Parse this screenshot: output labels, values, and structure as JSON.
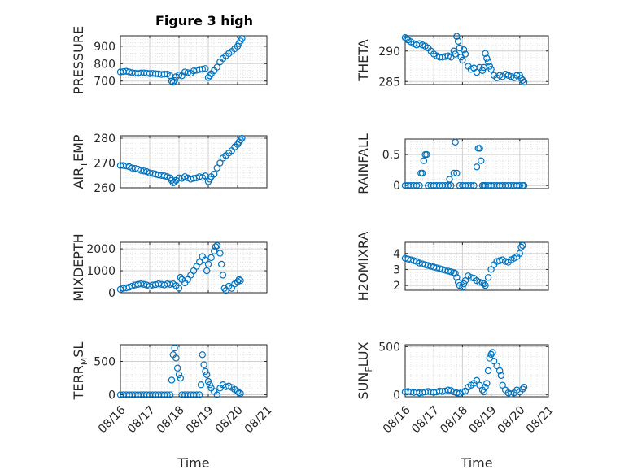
{
  "figure_title": "Figure 3 high",
  "chart_data": [
    {
      "type": "scatter",
      "id": "pressure",
      "ylabel": "PRESSURE",
      "xlabel": "",
      "ylim": [
        680,
        960
      ],
      "yticks": [
        700,
        800,
        900
      ],
      "xlim": [
        "2022-08-16",
        "2022-08-21"
      ],
      "xticks": [
        "08/16",
        "08/17",
        "08/18",
        "08/19",
        "08/20",
        "08/21"
      ],
      "grid": true,
      "minor_grid": true,
      "color": "#0072BD",
      "x": [
        0.0,
        0.1,
        0.2,
        0.3,
        0.4,
        0.5,
        0.6,
        0.7,
        0.8,
        0.9,
        1.0,
        1.1,
        1.2,
        1.3,
        1.4,
        1.5,
        1.6,
        1.7,
        1.75,
        1.8,
        1.85,
        1.9,
        2.0,
        2.1,
        2.2,
        2.3,
        2.4,
        2.5,
        2.6,
        2.7,
        2.8,
        2.9,
        3.0,
        3.05,
        3.1,
        3.2,
        3.3,
        3.4,
        3.5,
        3.6,
        3.7,
        3.8,
        3.9,
        4.0,
        4.05,
        4.1,
        4.15
      ],
      "y": [
        752,
        754,
        756,
        752,
        748,
        745,
        744,
        746,
        747,
        745,
        743,
        744,
        742,
        741,
        738,
        740,
        740,
        730,
        700,
        693,
        703,
        725,
        735,
        730,
        752,
        748,
        745,
        758,
        762,
        766,
        768,
        772,
        720,
        730,
        742,
        760,
        780,
        810,
        830,
        845,
        858,
        870,
        885,
        900,
        915,
        930,
        945
      ]
    },
    {
      "type": "scatter",
      "id": "theta",
      "ylabel": "THETA",
      "xlabel": "",
      "ylim": [
        284.5,
        292.5
      ],
      "yticks": [
        285,
        290
      ],
      "xlim": [
        "2022-08-16",
        "2022-08-21"
      ],
      "xticks": [
        "08/16",
        "08/17",
        "08/18",
        "08/19",
        "08/20",
        "08/21"
      ],
      "grid": true,
      "minor_grid": true,
      "color": "#0072BD",
      "x": [
        0.0,
        0.05,
        0.1,
        0.2,
        0.3,
        0.4,
        0.5,
        0.6,
        0.7,
        0.8,
        0.9,
        1.0,
        1.1,
        1.2,
        1.3,
        1.4,
        1.5,
        1.6,
        1.7,
        1.75,
        1.8,
        1.85,
        1.9,
        1.95,
        2.0,
        2.05,
        2.1,
        2.2,
        2.3,
        2.4,
        2.5,
        2.6,
        2.7,
        2.75,
        2.8,
        2.85,
        2.9,
        2.95,
        3.0,
        3.1,
        3.2,
        3.3,
        3.4,
        3.5,
        3.6,
        3.7,
        3.8,
        3.9,
        4.0,
        4.05,
        4.1,
        4.15
      ],
      "y": [
        292.2,
        292.0,
        291.8,
        291.5,
        291.2,
        291.0,
        291.2,
        291.0,
        290.8,
        290.5,
        290.0,
        289.5,
        289.2,
        289.0,
        289.0,
        289.1,
        289.2,
        289.0,
        290.0,
        289.5,
        292.4,
        291.6,
        290.5,
        289.0,
        288.5,
        290.2,
        289.5,
        287.5,
        287.0,
        287.2,
        286.5,
        287.3,
        286.8,
        287.3,
        289.6,
        288.8,
        288.2,
        287.5,
        287.0,
        286.0,
        285.6,
        286.0,
        285.8,
        286.2,
        286.0,
        285.8,
        285.6,
        286.0,
        286.0,
        285.5,
        285.2,
        284.9
      ]
    },
    {
      "type": "scatter",
      "id": "air_temp",
      "ylabel": "AIR_TEMP",
      "ylabel_main": "AIR",
      "ylabel_sub": "T",
      "ylabel_tail": "EMP",
      "xlabel": "",
      "ylim": [
        260,
        281
      ],
      "yticks": [
        260,
        270,
        280
      ],
      "xlim": [
        "2022-08-16",
        "2022-08-21"
      ],
      "xticks": [
        "08/16",
        "08/17",
        "08/18",
        "08/19",
        "08/20",
        "08/21"
      ],
      "grid": true,
      "minor_grid": true,
      "color": "#0072BD",
      "x": [
        0.0,
        0.1,
        0.2,
        0.3,
        0.4,
        0.5,
        0.6,
        0.7,
        0.8,
        0.9,
        1.0,
        1.1,
        1.2,
        1.3,
        1.4,
        1.5,
        1.6,
        1.7,
        1.75,
        1.8,
        1.85,
        1.9,
        2.0,
        2.1,
        2.2,
        2.3,
        2.4,
        2.5,
        2.6,
        2.7,
        2.8,
        2.9,
        3.0,
        3.05,
        3.1,
        3.2,
        3.3,
        3.4,
        3.5,
        3.6,
        3.7,
        3.8,
        3.9,
        4.0,
        4.05,
        4.1,
        4.15
      ],
      "y": [
        269,
        269,
        268.8,
        268.5,
        268,
        267.8,
        267.5,
        267,
        266.8,
        266.5,
        266,
        265.8,
        265.5,
        265.2,
        265,
        264.8,
        264.5,
        264,
        263,
        262,
        262.3,
        263,
        264,
        263.8,
        264.5,
        264,
        263.5,
        263.8,
        264,
        264.5,
        264.2,
        264.8,
        262.5,
        263.5,
        264.5,
        265.5,
        268,
        270,
        272,
        273,
        274,
        275,
        276.5,
        277.5,
        278.5,
        279.3,
        280
      ]
    },
    {
      "type": "scatter",
      "id": "rainfall",
      "ylabel": "RAINFALL",
      "xlabel": "",
      "ylim": [
        -0.05,
        0.75
      ],
      "yticks": [
        0,
        0.5
      ],
      "ytick_labels": [
        "0",
        "0.5"
      ],
      "xlim": [
        "2022-08-16",
        "2022-08-21"
      ],
      "xticks": [
        "08/16",
        "08/17",
        "08/18",
        "08/19",
        "08/20",
        "08/21"
      ],
      "grid": true,
      "minor_grid": true,
      "color": "#0072BD",
      "x": [
        0.0,
        0.1,
        0.2,
        0.3,
        0.4,
        0.5,
        0.55,
        0.6,
        0.65,
        0.7,
        0.75,
        0.8,
        0.9,
        1.0,
        1.1,
        1.2,
        1.3,
        1.4,
        1.5,
        1.55,
        1.6,
        1.7,
        1.75,
        1.8,
        1.9,
        2.0,
        2.1,
        2.2,
        2.3,
        2.4,
        2.5,
        2.55,
        2.6,
        2.65,
        2.7,
        2.75,
        2.8,
        2.9,
        3.0,
        3.1,
        3.2,
        3.3,
        3.4,
        3.5,
        3.6,
        3.7,
        3.8,
        3.9,
        4.0,
        4.1,
        4.15
      ],
      "y": [
        0,
        0,
        0,
        0,
        0,
        0,
        0.2,
        0.2,
        0.4,
        0.5,
        0.5,
        0,
        0,
        0,
        0,
        0,
        0,
        0,
        0,
        0.1,
        0,
        0.2,
        0.7,
        0.2,
        0,
        0,
        0,
        0,
        0,
        0,
        0.3,
        0.6,
        0.6,
        0.4,
        0,
        0,
        0,
        0,
        0,
        0,
        0,
        0,
        0,
        0,
        0,
        0,
        0,
        0,
        0,
        0,
        0
      ]
    },
    {
      "type": "scatter",
      "id": "mixdepth",
      "ylabel": "MIXDEPTH",
      "xlabel": "",
      "ylim": [
        0,
        2300
      ],
      "yticks": [
        0,
        1000,
        2000
      ],
      "xlim": [
        "2022-08-16",
        "2022-08-21"
      ],
      "xticks": [
        "08/16",
        "08/17",
        "08/18",
        "08/19",
        "08/20",
        "08/21"
      ],
      "grid": true,
      "minor_grid": true,
      "color": "#0072BD",
      "x": [
        0.0,
        0.1,
        0.2,
        0.3,
        0.4,
        0.5,
        0.6,
        0.7,
        0.8,
        0.9,
        1.0,
        1.1,
        1.2,
        1.3,
        1.4,
        1.5,
        1.6,
        1.7,
        1.8,
        1.9,
        2.0,
        2.05,
        2.1,
        2.2,
        2.3,
        2.4,
        2.5,
        2.6,
        2.7,
        2.8,
        2.9,
        2.95,
        3.0,
        3.1,
        3.2,
        3.25,
        3.3,
        3.4,
        3.45,
        3.5,
        3.55,
        3.6,
        3.7,
        3.8,
        3.9,
        4.0,
        4.05,
        4.1
      ],
      "y": [
        150,
        200,
        220,
        250,
        300,
        350,
        380,
        400,
        380,
        350,
        300,
        350,
        370,
        400,
        380,
        350,
        400,
        380,
        400,
        320,
        200,
        700,
        600,
        450,
        600,
        800,
        1000,
        1200,
        1400,
        1650,
        1500,
        1000,
        1300,
        1600,
        1900,
        2100,
        2150,
        1800,
        1300,
        800,
        200,
        100,
        300,
        200,
        400,
        500,
        600,
        550
      ]
    },
    {
      "type": "scatter",
      "id": "h2omixra",
      "ylabel": "H2OMIXRA",
      "xlabel": "",
      "ylim": [
        1.7,
        4.7
      ],
      "yticks": [
        2,
        3,
        4
      ],
      "xlim": [
        "2022-08-16",
        "2022-08-21"
      ],
      "xticks": [
        "08/16",
        "08/17",
        "08/18",
        "08/19",
        "08/20",
        "08/21"
      ],
      "grid": true,
      "minor_grid": true,
      "color": "#0072BD",
      "x": [
        0.0,
        0.1,
        0.2,
        0.3,
        0.4,
        0.5,
        0.6,
        0.7,
        0.8,
        0.9,
        1.0,
        1.1,
        1.2,
        1.3,
        1.4,
        1.5,
        1.6,
        1.7,
        1.75,
        1.8,
        1.85,
        1.9,
        2.0,
        2.05,
        2.1,
        2.2,
        2.3,
        2.4,
        2.5,
        2.6,
        2.7,
        2.75,
        2.8,
        2.9,
        3.0,
        3.1,
        3.2,
        3.3,
        3.4,
        3.5,
        3.6,
        3.7,
        3.8,
        3.9,
        4.0,
        4.05,
        4.1
      ],
      "y": [
        3.7,
        3.65,
        3.6,
        3.55,
        3.5,
        3.4,
        3.35,
        3.3,
        3.25,
        3.2,
        3.15,
        3.1,
        3.05,
        3.0,
        2.95,
        2.9,
        2.85,
        2.8,
        2.75,
        2.5,
        2.2,
        2.0,
        1.9,
        2.1,
        2.3,
        2.6,
        2.5,
        2.45,
        2.3,
        2.2,
        2.15,
        2.1,
        2.0,
        2.5,
        3.0,
        3.3,
        3.5,
        3.55,
        3.6,
        3.5,
        3.45,
        3.6,
        3.7,
        3.8,
        4.0,
        4.4,
        4.5
      ]
    },
    {
      "type": "scatter",
      "id": "terr_msl",
      "ylabel": "TERR_MSL",
      "ylabel_main": "TERR",
      "ylabel_sub": "M",
      "ylabel_tail": "SL",
      "xlabel": "Time",
      "ylim": [
        -30,
        750
      ],
      "yticks": [
        0,
        500
      ],
      "xlim": [
        "2022-08-16",
        "2022-08-21"
      ],
      "xticks": [
        "08/16",
        "08/17",
        "08/18",
        "08/19",
        "08/20",
        "08/21"
      ],
      "grid": true,
      "minor_grid": true,
      "color": "#0072BD",
      "x": [
        0.0,
        0.1,
        0.2,
        0.3,
        0.4,
        0.5,
        0.6,
        0.7,
        0.8,
        0.9,
        1.0,
        1.1,
        1.2,
        1.3,
        1.4,
        1.5,
        1.6,
        1.7,
        1.75,
        1.8,
        1.85,
        1.9,
        1.95,
        2.0,
        2.05,
        2.1,
        2.2,
        2.3,
        2.4,
        2.5,
        2.6,
        2.7,
        2.75,
        2.8,
        2.85,
        2.9,
        2.95,
        3.0,
        3.05,
        3.1,
        3.2,
        3.3,
        3.4,
        3.5,
        3.6,
        3.7,
        3.8,
        3.9,
        4.0,
        4.05,
        4.1
      ],
      "y": [
        0,
        0,
        0,
        0,
        0,
        0,
        0,
        0,
        0,
        0,
        0,
        0,
        0,
        0,
        0,
        0,
        0,
        0,
        220,
        600,
        700,
        550,
        400,
        300,
        250,
        0,
        0,
        0,
        0,
        0,
        0,
        0,
        150,
        600,
        450,
        350,
        300,
        200,
        150,
        100,
        50,
        0,
        100,
        150,
        120,
        130,
        110,
        80,
        50,
        30,
        20
      ]
    },
    {
      "type": "scatter",
      "id": "sun_flux",
      "ylabel": "SUN_FLUX",
      "ylabel_main": "SUN",
      "ylabel_sub": "F",
      "ylabel_tail": "LUX",
      "xlabel": "Time",
      "ylim": [
        -20,
        520
      ],
      "yticks": [
        0,
        500
      ],
      "xlim": [
        "2022-08-16",
        "2022-08-21"
      ],
      "xticks": [
        "08/16",
        "08/17",
        "08/18",
        "08/19",
        "08/20",
        "08/21"
      ],
      "grid": true,
      "minor_grid": true,
      "color": "#0072BD",
      "x": [
        0.0,
        0.1,
        0.2,
        0.3,
        0.4,
        0.5,
        0.6,
        0.7,
        0.8,
        0.9,
        1.0,
        1.1,
        1.2,
        1.3,
        1.4,
        1.5,
        1.6,
        1.7,
        1.8,
        1.9,
        2.0,
        2.1,
        2.2,
        2.3,
        2.4,
        2.5,
        2.6,
        2.7,
        2.75,
        2.8,
        2.85,
        2.9,
        2.95,
        3.0,
        3.05,
        3.1,
        3.2,
        3.3,
        3.35,
        3.4,
        3.5,
        3.6,
        3.7,
        3.8,
        3.9,
        4.0,
        4.1,
        4.15
      ],
      "y": [
        30,
        35,
        30,
        25,
        30,
        20,
        25,
        30,
        35,
        30,
        25,
        30,
        40,
        35,
        40,
        50,
        45,
        30,
        20,
        15,
        30,
        40,
        80,
        100,
        120,
        150,
        100,
        50,
        30,
        80,
        120,
        250,
        380,
        420,
        440,
        350,
        300,
        250,
        200,
        100,
        50,
        20,
        10,
        20,
        50,
        30,
        60,
        80
      ]
    }
  ]
}
